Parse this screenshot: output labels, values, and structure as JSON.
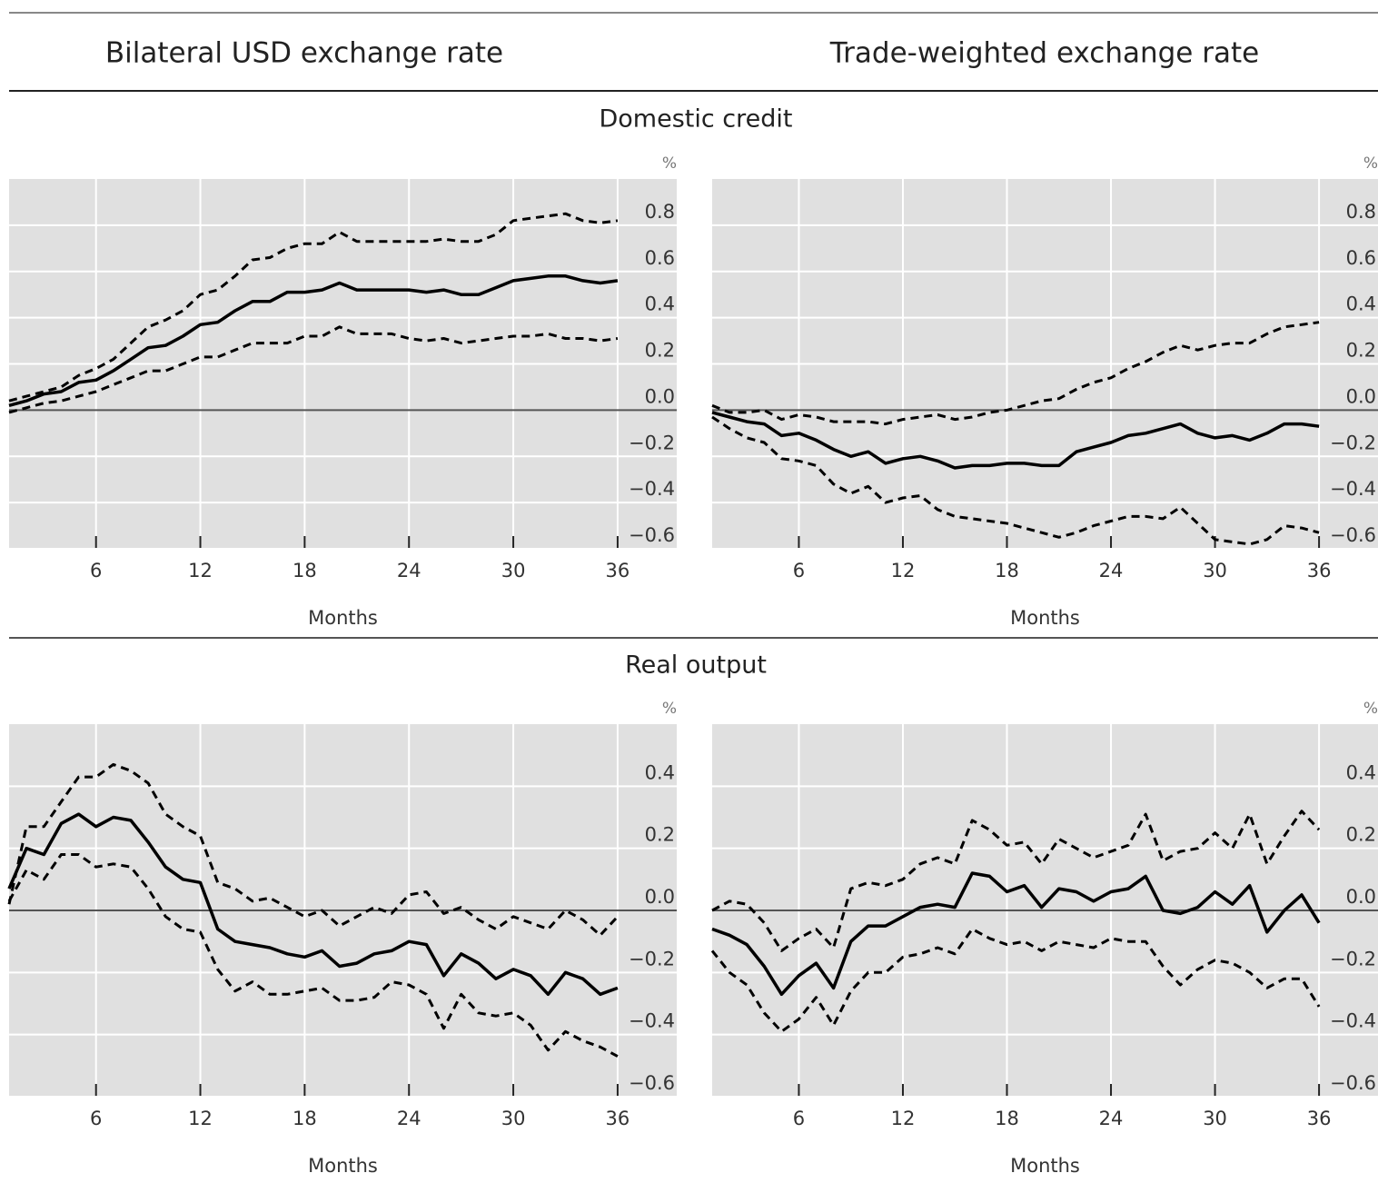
{
  "column_titles": [
    "Bilateral USD exchange rate",
    "Trade-weighted exchange rate"
  ],
  "row_titles": [
    "Domestic credit",
    "Real output"
  ],
  "chart_data": [
    {
      "type": "line",
      "xlabel": "Months",
      "y_unit": "%",
      "xlim": [
        1,
        39.4
      ],
      "xticks": [
        6,
        12,
        18,
        24,
        30,
        36
      ],
      "ylim": [
        -0.6,
        1.0
      ],
      "yticks": [
        {
          "value": -0.6,
          "label": "−0.6"
        },
        {
          "value": -0.4,
          "label": "−0.4"
        },
        {
          "value": -0.2,
          "label": "−0.2"
        },
        {
          "value": 0,
          "label": "0.0"
        },
        0.2,
        0.4,
        0.6,
        0.8
      ],
      "grid": true,
      "background": "#e0e0e0",
      "x": [
        1,
        2,
        3,
        4,
        5,
        6,
        7,
        8,
        9,
        10,
        11,
        12,
        13,
        14,
        15,
        16,
        17,
        18,
        19,
        20,
        21,
        22,
        23,
        24,
        25,
        26,
        27,
        28,
        29,
        30,
        31,
        32,
        33,
        34,
        35,
        36
      ],
      "series": [
        {
          "color": "#000000",
          "style": "solid",
          "values": [
            0.02,
            0.04,
            0.07,
            0.08,
            0.12,
            0.13,
            0.17,
            0.22,
            0.27,
            0.28,
            0.32,
            0.37,
            0.38,
            0.43,
            0.47,
            0.47,
            0.51,
            0.51,
            0.52,
            0.55,
            0.52,
            0.52,
            0.52,
            0.52,
            0.51,
            0.52,
            0.5,
            0.5,
            0.53,
            0.56,
            0.57,
            0.58,
            0.58,
            0.56,
            0.55,
            0.56
          ]
        },
        {
          "color": "#000000",
          "style": "dashed",
          "values": [
            0.04,
            0.06,
            0.08,
            0.1,
            0.15,
            0.18,
            0.22,
            0.29,
            0.36,
            0.39,
            0.43,
            0.5,
            0.52,
            0.58,
            0.65,
            0.66,
            0.7,
            0.72,
            0.72,
            0.77,
            0.73,
            0.73,
            0.73,
            0.73,
            0.73,
            0.74,
            0.73,
            0.73,
            0.76,
            0.82,
            0.83,
            0.84,
            0.85,
            0.82,
            0.81,
            0.82
          ]
        },
        {
          "color": "#000000",
          "style": "dashed",
          "values": [
            -0.01,
            0.01,
            0.03,
            0.04,
            0.06,
            0.08,
            0.11,
            0.14,
            0.17,
            0.17,
            0.2,
            0.23,
            0.23,
            0.26,
            0.29,
            0.29,
            0.29,
            0.32,
            0.32,
            0.36,
            0.33,
            0.33,
            0.33,
            0.31,
            0.3,
            0.31,
            0.29,
            0.3,
            0.31,
            0.32,
            0.32,
            0.33,
            0.31,
            0.31,
            0.3,
            0.31
          ]
        }
      ]
    },
    {
      "type": "line",
      "xlabel": "Months",
      "y_unit": "%",
      "xlim": [
        1,
        39.4
      ],
      "xticks": [
        6,
        12,
        18,
        24,
        30,
        36
      ],
      "ylim": [
        -0.6,
        1.0
      ],
      "yticks": [
        {
          "value": -0.6,
          "label": "−0.6"
        },
        {
          "value": -0.4,
          "label": "−0.4"
        },
        {
          "value": -0.2,
          "label": "−0.2"
        },
        {
          "value": 0,
          "label": "0.0"
        },
        0.2,
        0.4,
        0.6,
        0.8
      ],
      "grid": true,
      "background": "#e0e0e0",
      "x": [
        1,
        2,
        3,
        4,
        5,
        6,
        7,
        8,
        9,
        10,
        11,
        12,
        13,
        14,
        15,
        16,
        17,
        18,
        19,
        20,
        21,
        22,
        23,
        24,
        25,
        26,
        27,
        28,
        29,
        30,
        31,
        32,
        33,
        34,
        35,
        36
      ],
      "series": [
        {
          "color": "#000000",
          "style": "solid",
          "values": [
            -0.01,
            -0.03,
            -0.05,
            -0.06,
            -0.11,
            -0.1,
            -0.13,
            -0.17,
            -0.2,
            -0.18,
            -0.23,
            -0.21,
            -0.2,
            -0.22,
            -0.25,
            -0.24,
            -0.24,
            -0.23,
            -0.23,
            -0.24,
            -0.24,
            -0.18,
            -0.16,
            -0.14,
            -0.11,
            -0.1,
            -0.08,
            -0.06,
            -0.1,
            -0.12,
            -0.11,
            -0.13,
            -0.1,
            -0.06,
            -0.06,
            -0.07
          ]
        },
        {
          "color": "#000000",
          "style": "dashed",
          "values": [
            0.02,
            -0.01,
            -0.01,
            0.0,
            -0.04,
            -0.02,
            -0.03,
            -0.05,
            -0.05,
            -0.05,
            -0.06,
            -0.04,
            -0.03,
            -0.02,
            -0.04,
            -0.03,
            -0.01,
            0.0,
            0.02,
            0.04,
            0.05,
            0.09,
            0.12,
            0.14,
            0.18,
            0.21,
            0.25,
            0.28,
            0.26,
            0.28,
            0.29,
            0.29,
            0.33,
            0.36,
            0.37,
            0.38
          ]
        },
        {
          "color": "#000000",
          "style": "dashed",
          "values": [
            -0.03,
            -0.08,
            -0.12,
            -0.14,
            -0.21,
            -0.22,
            -0.24,
            -0.32,
            -0.36,
            -0.33,
            -0.4,
            -0.38,
            -0.37,
            -0.43,
            -0.46,
            -0.47,
            -0.48,
            -0.49,
            -0.51,
            -0.53,
            -0.55,
            -0.53,
            -0.5,
            -0.48,
            -0.46,
            -0.46,
            -0.47,
            -0.42,
            -0.49,
            -0.56,
            -0.57,
            -0.58,
            -0.56,
            -0.5,
            -0.51,
            -0.53
          ]
        }
      ]
    },
    {
      "type": "line",
      "xlabel": "Months",
      "y_unit": "%",
      "xlim": [
        1,
        39.4
      ],
      "xticks": [
        6,
        12,
        18,
        24,
        30,
        36
      ],
      "ylim": [
        -0.6,
        0.6
      ],
      "yticks": [
        {
          "value": -0.6,
          "label": "−0.6"
        },
        {
          "value": -0.4,
          "label": "−0.4"
        },
        {
          "value": -0.2,
          "label": "−0.2"
        },
        {
          "value": 0,
          "label": "0.0"
        },
        0.2,
        0.4
      ],
      "grid": true,
      "background": "#e0e0e0",
      "x": [
        1,
        2,
        3,
        4,
        5,
        6,
        7,
        8,
        9,
        10,
        11,
        12,
        13,
        14,
        15,
        16,
        17,
        18,
        19,
        20,
        21,
        22,
        23,
        24,
        25,
        26,
        27,
        28,
        29,
        30,
        31,
        32,
        33,
        34,
        35,
        36
      ],
      "series": [
        {
          "color": "#000000",
          "style": "solid",
          "values": [
            0.07,
            0.2,
            0.18,
            0.28,
            0.31,
            0.27,
            0.3,
            0.29,
            0.22,
            0.14,
            0.1,
            0.09,
            -0.06,
            -0.1,
            -0.11,
            -0.12,
            -0.14,
            -0.15,
            -0.13,
            -0.18,
            -0.17,
            -0.14,
            -0.13,
            -0.1,
            -0.11,
            -0.21,
            -0.14,
            -0.17,
            -0.22,
            -0.19,
            -0.21,
            -0.27,
            -0.2,
            -0.22,
            -0.27,
            -0.25
          ]
        },
        {
          "color": "#000000",
          "style": "dashed",
          "values": [
            0.02,
            0.27,
            0.27,
            0.35,
            0.43,
            0.43,
            0.47,
            0.45,
            0.41,
            0.31,
            0.27,
            0.24,
            0.09,
            0.07,
            0.03,
            0.04,
            0.01,
            -0.02,
            0.0,
            -0.05,
            -0.02,
            0.01,
            -0.01,
            0.05,
            0.06,
            -0.01,
            0.01,
            -0.03,
            -0.06,
            -0.02,
            -0.04,
            -0.06,
            0.0,
            -0.03,
            -0.08,
            -0.02
          ]
        },
        {
          "color": "#000000",
          "style": "dashed",
          "values": [
            0.03,
            0.13,
            0.1,
            0.18,
            0.18,
            0.14,
            0.15,
            0.14,
            0.07,
            -0.02,
            -0.06,
            -0.07,
            -0.19,
            -0.26,
            -0.23,
            -0.27,
            -0.27,
            -0.26,
            -0.25,
            -0.29,
            -0.29,
            -0.28,
            -0.23,
            -0.24,
            -0.27,
            -0.38,
            -0.27,
            -0.33,
            -0.34,
            -0.33,
            -0.37,
            -0.45,
            -0.39,
            -0.42,
            -0.44,
            -0.47
          ]
        }
      ]
    },
    {
      "type": "line",
      "xlabel": "Months",
      "y_unit": "%",
      "xlim": [
        1,
        39.4
      ],
      "xticks": [
        6,
        12,
        18,
        24,
        30,
        36
      ],
      "ylim": [
        -0.6,
        0.6
      ],
      "yticks": [
        {
          "value": -0.6,
          "label": "−0.6"
        },
        {
          "value": -0.4,
          "label": "−0.4"
        },
        {
          "value": -0.2,
          "label": "−0.2"
        },
        {
          "value": 0,
          "label": "0.0"
        },
        0.2,
        0.4
      ],
      "grid": true,
      "background": "#e0e0e0",
      "x": [
        1,
        2,
        3,
        4,
        5,
        6,
        7,
        8,
        9,
        10,
        11,
        12,
        13,
        14,
        15,
        16,
        17,
        18,
        19,
        20,
        21,
        22,
        23,
        24,
        25,
        26,
        27,
        28,
        29,
        30,
        31,
        32,
        33,
        34,
        35,
        36
      ],
      "series": [
        {
          "color": "#000000",
          "style": "solid",
          "values": [
            -0.06,
            -0.08,
            -0.11,
            -0.18,
            -0.27,
            -0.21,
            -0.17,
            -0.25,
            -0.1,
            -0.05,
            -0.05,
            -0.02,
            0.01,
            0.02,
            0.01,
            0.12,
            0.11,
            0.06,
            0.08,
            0.01,
            0.07,
            0.06,
            0.03,
            0.06,
            0.07,
            0.11,
            0.0,
            -0.01,
            0.01,
            0.06,
            0.02,
            0.08,
            -0.07,
            0.0,
            0.05,
            -0.04
          ]
        },
        {
          "color": "#000000",
          "style": "dashed",
          "values": [
            0.0,
            0.03,
            0.02,
            -0.04,
            -0.13,
            -0.09,
            -0.06,
            -0.12,
            0.07,
            0.09,
            0.08,
            0.1,
            0.15,
            0.17,
            0.15,
            0.29,
            0.26,
            0.21,
            0.22,
            0.15,
            0.23,
            0.2,
            0.17,
            0.19,
            0.21,
            0.31,
            0.16,
            0.19,
            0.2,
            0.25,
            0.2,
            0.31,
            0.15,
            0.24,
            0.32,
            0.26
          ]
        },
        {
          "color": "#000000",
          "style": "dashed",
          "values": [
            -0.13,
            -0.2,
            -0.24,
            -0.33,
            -0.39,
            -0.35,
            -0.28,
            -0.37,
            -0.26,
            -0.2,
            -0.2,
            -0.15,
            -0.14,
            -0.12,
            -0.14,
            -0.06,
            -0.09,
            -0.11,
            -0.1,
            -0.13,
            -0.1,
            -0.11,
            -0.12,
            -0.09,
            -0.1,
            -0.1,
            -0.18,
            -0.24,
            -0.19,
            -0.16,
            -0.17,
            -0.2,
            -0.25,
            -0.22,
            -0.22,
            -0.31
          ]
        }
      ]
    }
  ]
}
